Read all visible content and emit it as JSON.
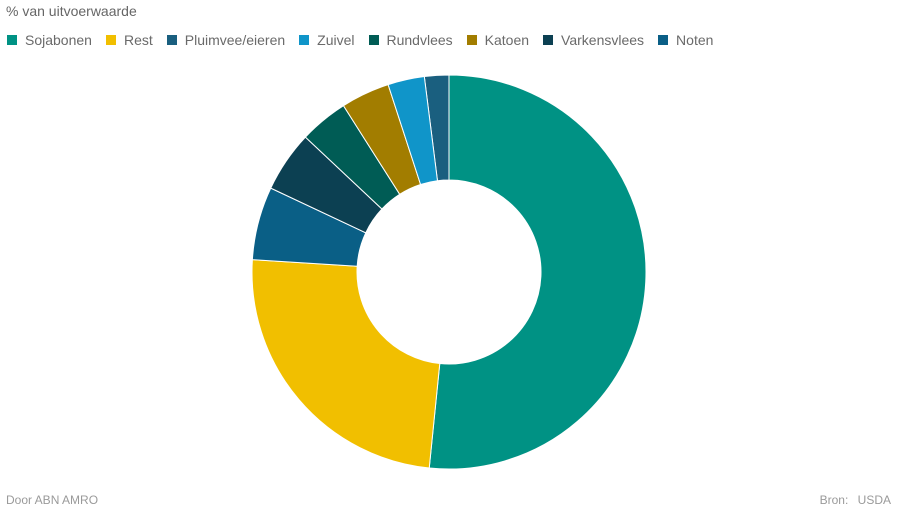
{
  "chart_data": {
    "type": "pie",
    "title": "% van uitvoerwaarde",
    "categories": [
      "Sojabonen",
      "Rest",
      "Pluimvee/eieren",
      "Zuivel",
      "Rundvlees",
      "Katoen",
      "Varkensvlees",
      "Noten"
    ],
    "slices": [
      {
        "label": "Noten",
        "value": 2,
        "color": "#1a5f7f"
      },
      {
        "label": "Sojabonen",
        "value": 51.6,
        "color": "#009284"
      },
      {
        "label": "Rest",
        "value": 24.4,
        "color": "#f1bf00"
      },
      {
        "label": "Pluimvee/eieren",
        "value": 6,
        "color": "#0a5f86"
      },
      {
        "label": "Varkensvlees",
        "value": 5,
        "color": "#0c4052"
      },
      {
        "label": "Rundvlees",
        "value": 4,
        "color": "#005c55"
      },
      {
        "label": "Katoen",
        "value": 4,
        "color": "#a27d00"
      },
      {
        "label": "Zuivel",
        "value": 3,
        "color": "#1095c9"
      }
    ],
    "legend": [
      {
        "label": "Sojabonen",
        "color": "#009284"
      },
      {
        "label": "Rest",
        "color": "#f1bf00"
      },
      {
        "label": "Pluimvee/eieren",
        "color": "#1a5f7f"
      },
      {
        "label": "Zuivel",
        "color": "#1095c9"
      },
      {
        "label": "Rundvlees",
        "color": "#005c55"
      },
      {
        "label": "Katoen",
        "color": "#a27d00"
      },
      {
        "label": "Varkensvlees",
        "color": "#0c4052"
      },
      {
        "label": "Noten",
        "color": "#0a5f86"
      }
    ],
    "legend_placement": "top-left"
  },
  "footer": {
    "credit": "Door ABN AMRO",
    "source_label": "Bron:",
    "source_value": "USDA"
  }
}
